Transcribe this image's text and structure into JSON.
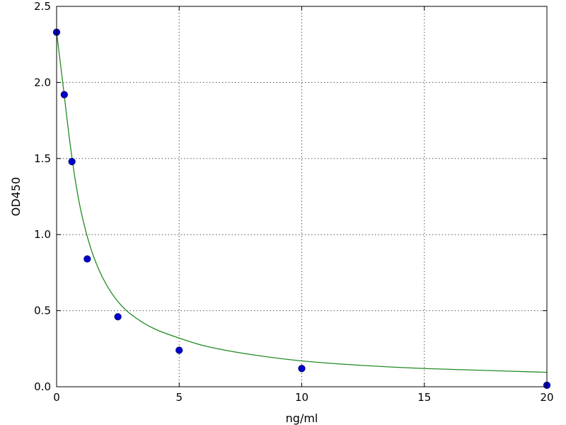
{
  "chart_data": {
    "type": "scatter",
    "xlabel": "ng/ml",
    "ylabel": "OD450",
    "xlim": [
      0,
      20
    ],
    "ylim": [
      0,
      2.5
    ],
    "xticks": [
      0,
      5,
      10,
      15,
      20
    ],
    "yticks": [
      0.0,
      0.5,
      1.0,
      1.5,
      2.0,
      2.5
    ],
    "xtick_labels": [
      "0",
      "5",
      "10",
      "15",
      "20"
    ],
    "ytick_labels": [
      "0.0",
      "0.5",
      "1.0",
      "1.5",
      "2.0",
      "2.5"
    ],
    "grid": true,
    "series": [
      {
        "kind": "points",
        "color": "#0000cc",
        "x": [
          0,
          0.313,
          0.625,
          1.25,
          2.5,
          5,
          10,
          20
        ],
        "y": [
          2.33,
          1.92,
          1.48,
          0.84,
          0.46,
          0.24,
          0.12,
          0.01
        ]
      },
      {
        "kind": "fitted-curve",
        "color": "#228b22",
        "x": [
          0,
          0.25,
          0.5,
          0.75,
          1,
          1.5,
          2,
          2.5,
          3,
          4,
          5,
          6,
          8,
          10,
          12,
          15,
          20
        ],
        "y": [
          2.33,
          2.0,
          1.66,
          1.37,
          1.15,
          0.86,
          0.68,
          0.56,
          0.48,
          0.38,
          0.32,
          0.27,
          0.21,
          0.17,
          0.145,
          0.12,
          0.095
        ]
      }
    ]
  }
}
